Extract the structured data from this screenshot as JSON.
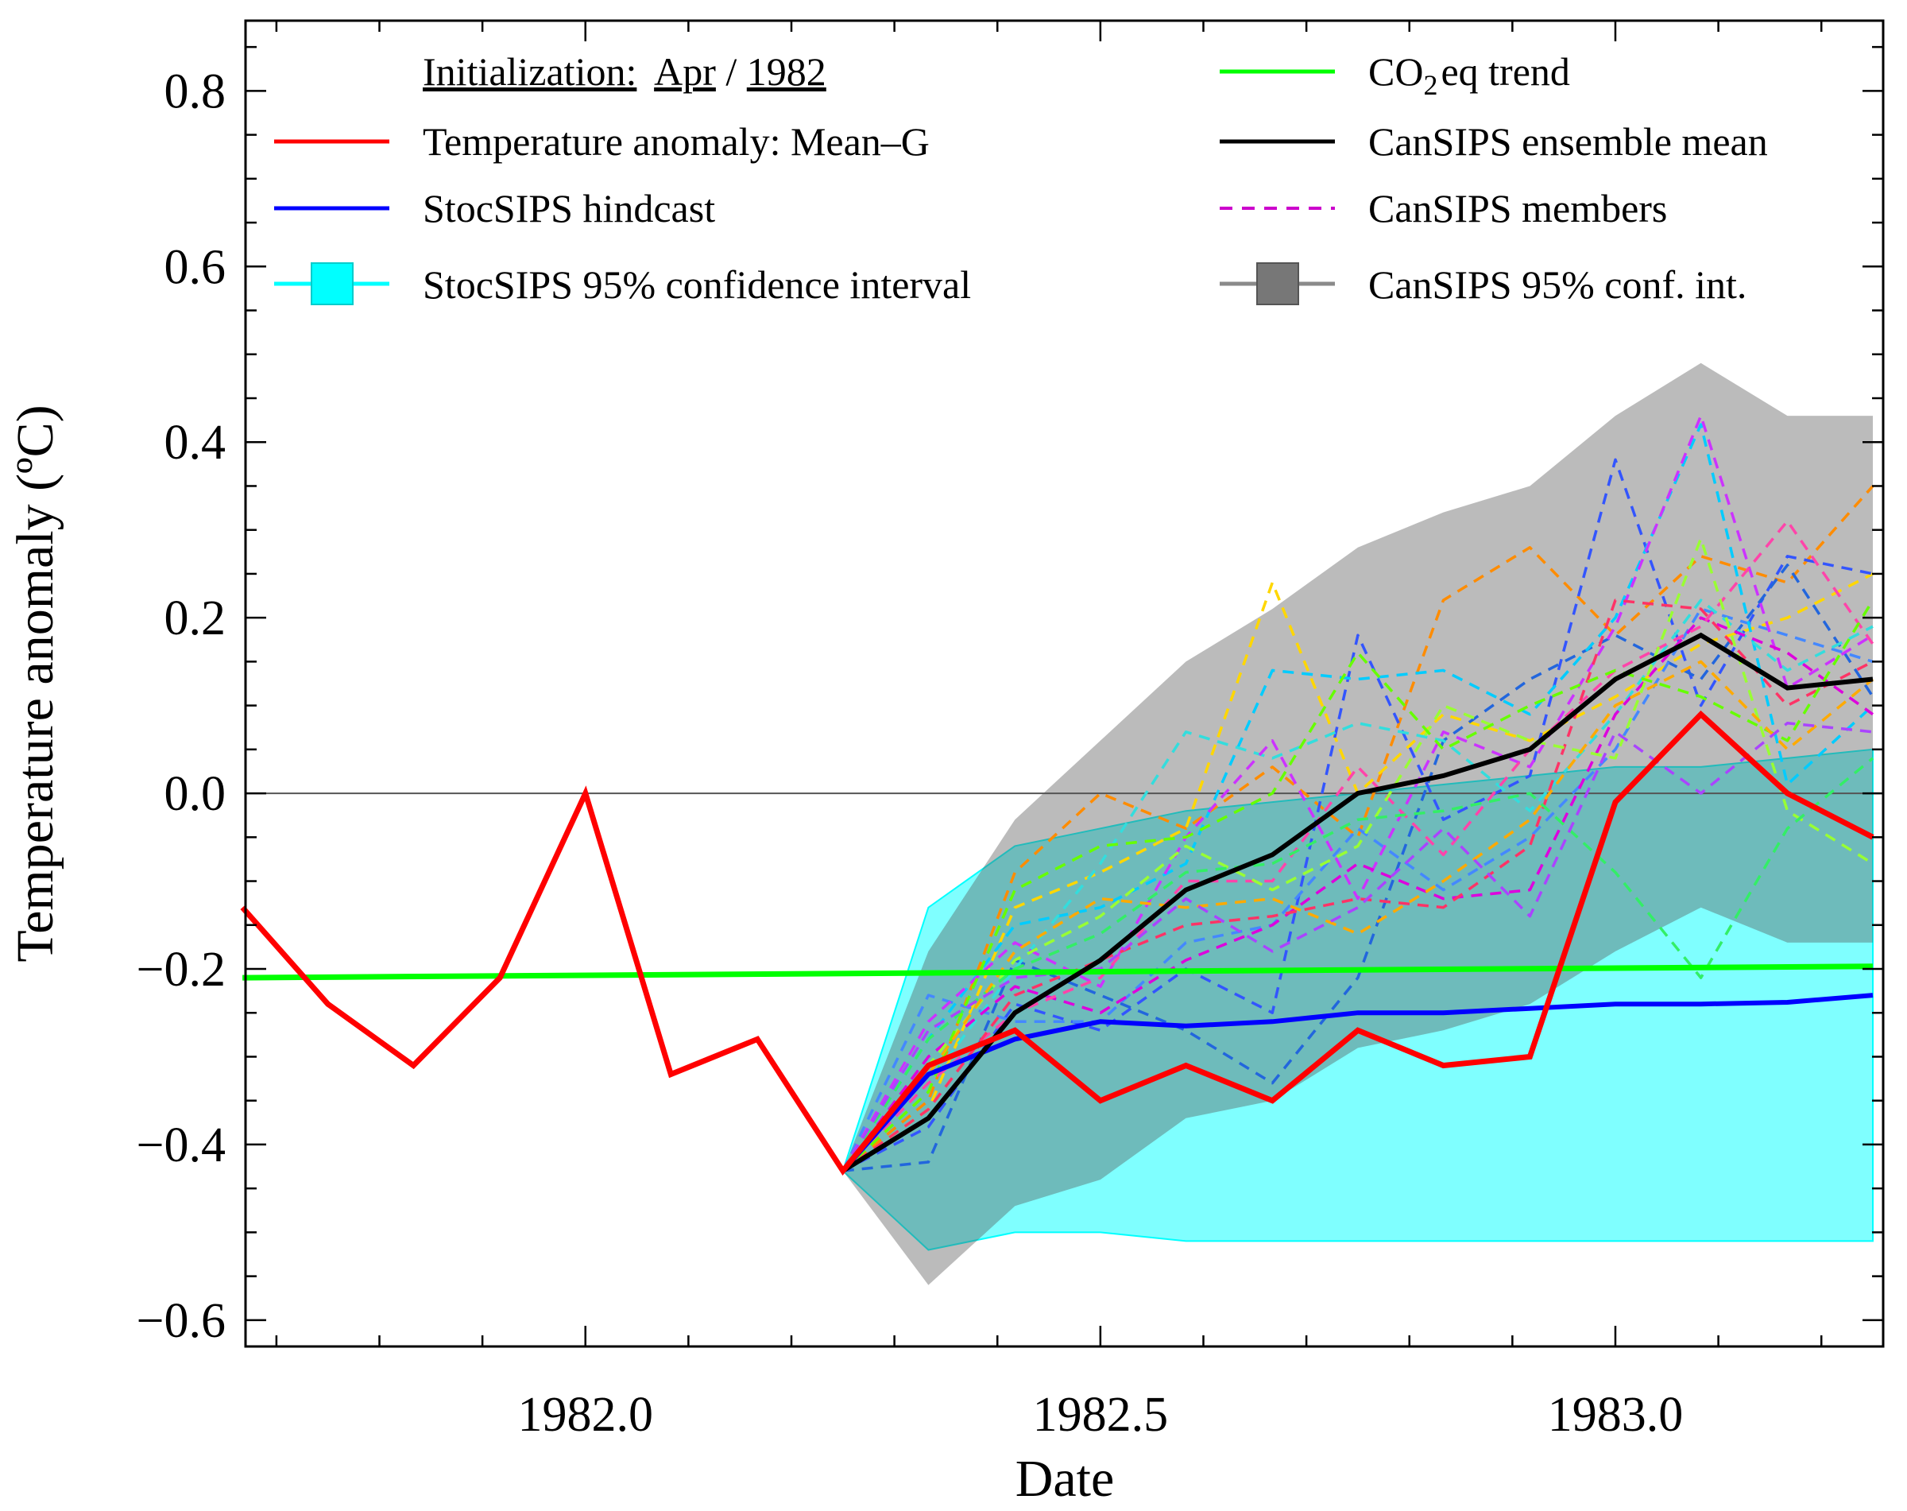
{
  "chart_data": {
    "type": "line",
    "xlabel": "Date",
    "ylabel": "Temperature anomaly (ºC)",
    "xlim": [
      1981.67,
      1983.26
    ],
    "ylim": [
      -0.63,
      0.88
    ],
    "x_ticks": [
      1982.0,
      1982.5,
      1983.0
    ],
    "x_tick_labels": [
      "1982.0",
      "1982.5",
      "1983.0"
    ],
    "y_ticks": [
      0.8,
      0.6,
      0.4,
      0.2,
      0.0,
      -0.2,
      -0.4,
      -0.6
    ],
    "y_tick_labels": [
      "0.8",
      "0.6",
      "0.4",
      "0.2",
      "0.0",
      "−0.2",
      "−0.4",
      "−0.6"
    ],
    "legend": {
      "title_prefix": "Initialization:",
      "title_month": "Apr",
      "title_sep": "/",
      "title_year": "1982",
      "entries": [
        {
          "id": "obs",
          "label": "Temperature anomaly: Mean–G",
          "color": "#ff0000"
        },
        {
          "id": "stoc",
          "label": "StocSIPS hindcast",
          "color": "#0000ff"
        },
        {
          "id": "stoc_ci",
          "label": "StocSIPS 95% confidence interval",
          "color": "#00ffff"
        },
        {
          "id": "co2",
          "label_main": "CO",
          "label_sub": "2",
          "label_rest": "eq trend",
          "color": "#00ff00"
        },
        {
          "id": "cansips_mean",
          "label": "CanSIPS ensemble mean",
          "color": "#000000"
        },
        {
          "id": "cansips_members",
          "label": "CanSIPS members",
          "color": "#cc00cc"
        },
        {
          "id": "cansips_ci",
          "label": "CanSIPS 95% conf. int.",
          "color": "#777777"
        }
      ]
    },
    "series": [
      {
        "name": "Temperature anomaly: Mean–G",
        "color": "#ff0000",
        "x": [
          1981.667,
          1981.75,
          1981.833,
          1981.917,
          1982.0,
          1982.083,
          1982.167,
          1982.25,
          1982.333,
          1982.417,
          1982.5,
          1982.583,
          1982.667,
          1982.75,
          1982.833,
          1982.917,
          1983.0,
          1983.083,
          1983.167,
          1983.25
        ],
        "y": [
          -0.13,
          -0.24,
          -0.31,
          -0.21,
          0.0,
          -0.32,
          -0.28,
          -0.43,
          -0.31,
          -0.27,
          -0.35,
          -0.31,
          -0.35,
          -0.27,
          -0.31,
          -0.3,
          -0.01,
          0.09,
          0.0,
          -0.05
        ]
      },
      {
        "name": "StocSIPS hindcast",
        "color": "#0000ff",
        "x": [
          1982.25,
          1982.333,
          1982.417,
          1982.5,
          1982.583,
          1982.667,
          1982.75,
          1982.833,
          1982.917,
          1983.0,
          1983.083,
          1983.167,
          1983.25
        ],
        "y": [
          -0.43,
          -0.32,
          -0.28,
          -0.26,
          -0.265,
          -0.26,
          -0.25,
          -0.25,
          -0.245,
          -0.24,
          -0.24,
          -0.238,
          -0.23
        ]
      },
      {
        "name": "CO2eq trend",
        "color": "#00ff00",
        "x": [
          1981.667,
          1983.25
        ],
        "y": [
          -0.21,
          -0.197
        ]
      },
      {
        "name": "CanSIPS ensemble mean",
        "color": "#000000",
        "x": [
          1982.25,
          1982.333,
          1982.417,
          1982.5,
          1982.583,
          1982.667,
          1982.75,
          1982.833,
          1982.917,
          1983.0,
          1983.083,
          1983.167,
          1983.25
        ],
        "y": [
          -0.43,
          -0.37,
          -0.25,
          -0.19,
          -0.11,
          -0.07,
          0.0,
          0.02,
          0.05,
          0.13,
          0.18,
          0.12,
          0.13
        ]
      }
    ],
    "stocsips_ci": {
      "x": [
        1982.25,
        1982.333,
        1982.417,
        1982.5,
        1982.583,
        1982.667,
        1982.75,
        1982.833,
        1982.917,
        1983.0,
        1983.083,
        1983.167,
        1983.25
      ],
      "upper": [
        -0.43,
        -0.13,
        -0.06,
        -0.04,
        -0.02,
        -0.01,
        0.0,
        0.01,
        0.02,
        0.03,
        0.03,
        0.04,
        0.05
      ],
      "lower": [
        -0.43,
        -0.52,
        -0.5,
        -0.5,
        -0.51,
        -0.51,
        -0.51,
        -0.51,
        -0.51,
        -0.51,
        -0.51,
        -0.51,
        -0.51
      ]
    },
    "cansips_ci": {
      "x": [
        1982.25,
        1982.333,
        1982.417,
        1982.5,
        1982.583,
        1982.667,
        1982.75,
        1982.833,
        1982.917,
        1983.0,
        1983.083,
        1983.167,
        1983.25
      ],
      "upper": [
        -0.43,
        -0.18,
        -0.03,
        0.06,
        0.15,
        0.21,
        0.28,
        0.32,
        0.35,
        0.43,
        0.49,
        0.43,
        0.43
      ],
      "lower": [
        -0.43,
        -0.56,
        -0.47,
        -0.44,
        -0.37,
        -0.35,
        -0.29,
        -0.27,
        -0.24,
        -0.18,
        -0.13,
        -0.17,
        -0.17
      ]
    },
    "members": {
      "x": [
        1982.25,
        1982.333,
        1982.417,
        1982.5,
        1982.583,
        1982.667,
        1982.75,
        1982.833,
        1982.917,
        1983.0,
        1983.083,
        1983.167,
        1983.25
      ],
      "lines": [
        {
          "color": "#ff8c00",
          "y": [
            -0.43,
            -0.35,
            -0.09,
            0.0,
            -0.04,
            0.03,
            -0.05,
            0.22,
            0.28,
            0.18,
            0.27,
            0.24,
            0.35
          ]
        },
        {
          "color": "#ffd700",
          "y": [
            -0.43,
            -0.36,
            -0.13,
            -0.09,
            -0.04,
            0.24,
            0.0,
            0.09,
            0.06,
            0.11,
            0.17,
            0.2,
            0.25
          ]
        },
        {
          "color": "#3355ff",
          "y": [
            -0.43,
            -0.38,
            -0.24,
            -0.27,
            -0.2,
            -0.25,
            0.18,
            -0.03,
            0.02,
            0.38,
            0.1,
            0.27,
            0.25
          ]
        },
        {
          "color": "#2266dd",
          "y": [
            -0.43,
            -0.42,
            -0.19,
            -0.23,
            -0.27,
            -0.33,
            -0.21,
            0.06,
            0.13,
            0.18,
            0.13,
            0.26,
            0.11
          ]
        },
        {
          "color": "#4488ff",
          "y": [
            -0.43,
            -0.23,
            -0.26,
            -0.26,
            -0.17,
            -0.15,
            -0.04,
            -0.11,
            -0.05,
            0.05,
            0.21,
            0.18,
            0.15
          ]
        },
        {
          "color": "#00ccff",
          "y": [
            -0.43,
            -0.28,
            -0.15,
            -0.13,
            -0.08,
            0.14,
            0.13,
            0.14,
            0.09,
            0.2,
            0.42,
            0.01,
            0.1
          ]
        },
        {
          "color": "#33dddd",
          "y": [
            -0.43,
            -0.33,
            -0.2,
            -0.08,
            0.07,
            0.04,
            0.08,
            0.06,
            -0.02,
            0.09,
            0.22,
            0.14,
            0.19
          ]
        },
        {
          "color": "#cc33ff",
          "y": [
            -0.43,
            -0.26,
            -0.17,
            -0.22,
            -0.05,
            0.06,
            -0.12,
            0.07,
            0.03,
            0.19,
            0.43,
            0.12,
            0.18
          ]
        },
        {
          "color": "#dd00dd",
          "y": [
            -0.43,
            -0.3,
            -0.22,
            -0.25,
            -0.19,
            -0.15,
            -0.08,
            -0.12,
            -0.11,
            0.09,
            0.2,
            0.16,
            0.09
          ]
        },
        {
          "color": "#ff44aa",
          "y": [
            -0.43,
            -0.33,
            -0.25,
            -0.21,
            -0.1,
            -0.1,
            0.03,
            -0.07,
            0.05,
            0.14,
            0.19,
            0.31,
            0.17
          ]
        },
        {
          "color": "#ff3366",
          "y": [
            -0.43,
            -0.36,
            -0.23,
            -0.19,
            -0.15,
            -0.14,
            -0.12,
            -0.13,
            -0.06,
            0.22,
            0.21,
            0.1,
            0.15
          ]
        },
        {
          "color": "#99ff33",
          "y": [
            -0.43,
            -0.31,
            -0.19,
            -0.14,
            -0.06,
            -0.11,
            -0.06,
            0.1,
            0.06,
            0.04,
            0.29,
            -0.02,
            -0.08
          ]
        },
        {
          "color": "#33ee66",
          "y": [
            -0.43,
            -0.28,
            -0.2,
            -0.16,
            -0.09,
            -0.08,
            -0.03,
            -0.02,
            0.0,
            -0.09,
            -0.21,
            -0.04,
            0.04
          ]
        },
        {
          "color": "#66ff00",
          "y": [
            -0.43,
            -0.34,
            -0.11,
            -0.06,
            -0.05,
            0.0,
            0.16,
            0.05,
            0.1,
            0.14,
            0.11,
            0.06,
            0.22
          ]
        },
        {
          "color": "#ffaa00",
          "y": [
            -0.43,
            -0.32,
            -0.18,
            -0.12,
            -0.13,
            -0.12,
            -0.16,
            -0.1,
            -0.03,
            0.1,
            0.15,
            0.05,
            0.13
          ]
        },
        {
          "color": "#aa44ff",
          "y": [
            -0.43,
            -0.27,
            -0.21,
            -0.2,
            -0.12,
            -0.18,
            -0.13,
            -0.04,
            -0.14,
            0.07,
            0.0,
            0.08,
            0.07
          ]
        }
      ]
    }
  }
}
